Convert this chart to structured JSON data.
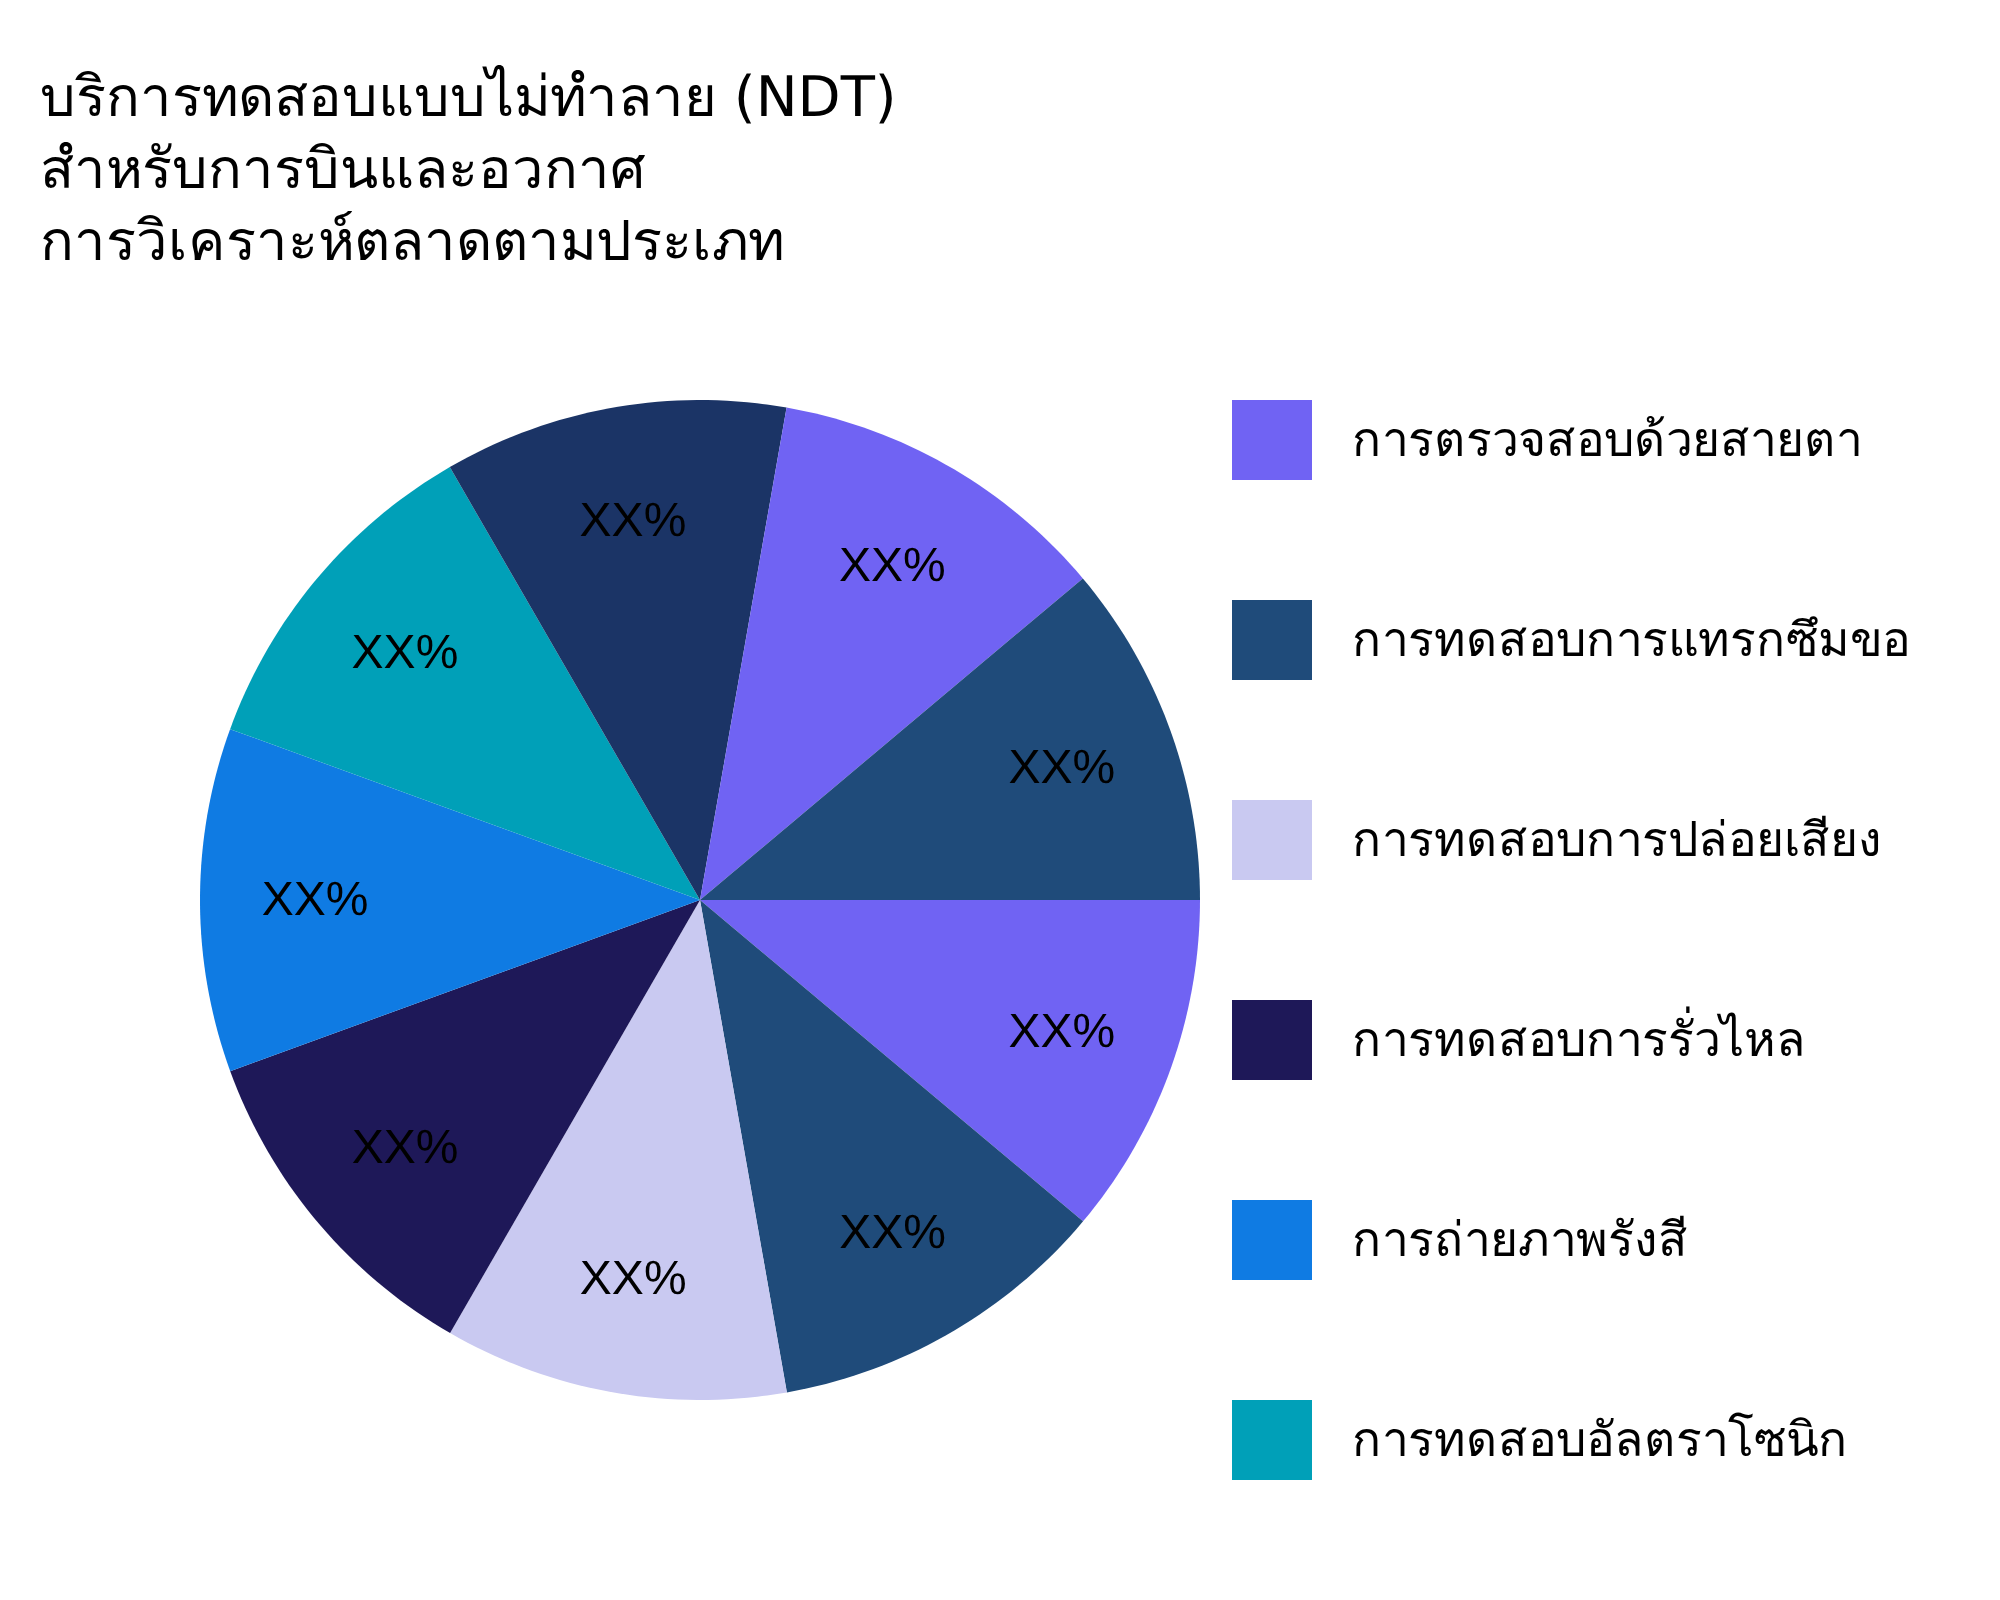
{
  "chart_data": {
    "type": "pie",
    "title": "บริการทดสอบแบบไม่ทำลาย (NDT)\nสำหรับการบินและอวกาศ\nการวิเคราะห์ตลาดตามประเภท",
    "categories": [
      "การตรวจสอบด้วยสายตา",
      "การทดสอบการแทรกซึมขอ",
      "การทดสอบการปล่อยเสียง",
      "การทดสอบการรั่วไหล",
      "การถ่ายภาพรังสี",
      "การทดสอบอัลตราโซนิก",
      null,
      null,
      null
    ],
    "values": [
      11.11,
      11.11,
      11.11,
      11.11,
      11.11,
      11.11,
      11.11,
      11.11,
      11.12
    ],
    "colors": [
      "#7063f3",
      "#1f4b7a",
      "#c9c9f1",
      "#1e1858",
      "#0f7be3",
      "#00a0b8",
      "#1b3466",
      "#7063f3",
      "#1f4b7a"
    ],
    "value_labels": [
      "XX%",
      "XX%",
      "XX%",
      "XX%",
      "XX%",
      "XX%",
      "XX%",
      "XX%",
      "XX%"
    ],
    "legend": "right"
  }
}
